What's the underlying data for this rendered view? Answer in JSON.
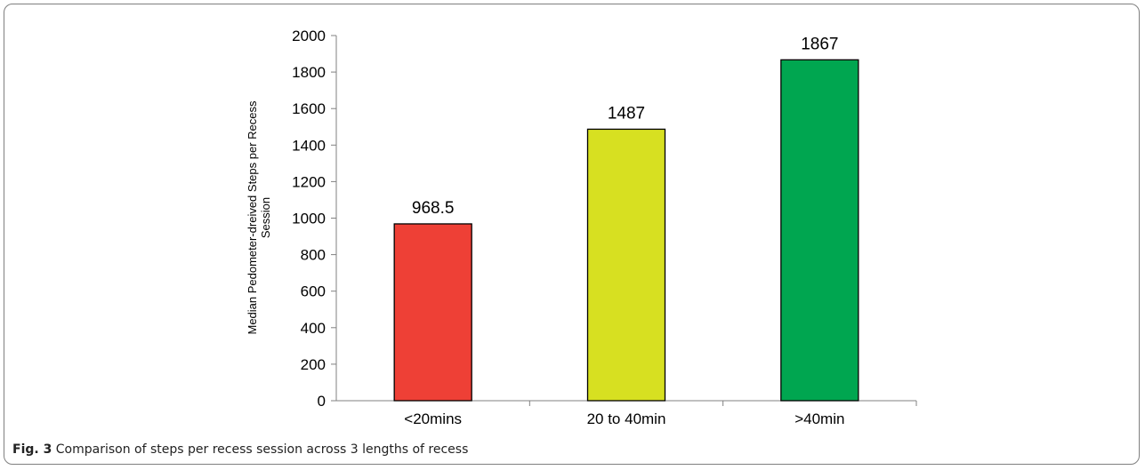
{
  "chart_data": {
    "type": "bar",
    "categories": [
      "<20mins",
      "20 to 40min",
      ">40min"
    ],
    "values": [
      968.5,
      1487,
      1867
    ],
    "data_labels": [
      "968.5",
      "1487",
      "1867"
    ],
    "colors": [
      "#ee4036",
      "#d7e021",
      "#00a650"
    ],
    "title": "",
    "xlabel": "",
    "ylabel": "Median Pedometer-dreived Steps per Recess Session",
    "ylabel_lines": [
      "Median Pedometer-dreived Steps per Recess",
      "Session"
    ],
    "ylim": [
      0,
      2000
    ],
    "yticks": [
      0,
      200,
      400,
      600,
      800,
      1000,
      1200,
      1400,
      1600,
      1800,
      2000
    ],
    "grid": false,
    "legend": "none"
  },
  "caption": {
    "label": "Fig. 3",
    "text": "Comparison of steps per recess session across 3 lengths of recess"
  }
}
